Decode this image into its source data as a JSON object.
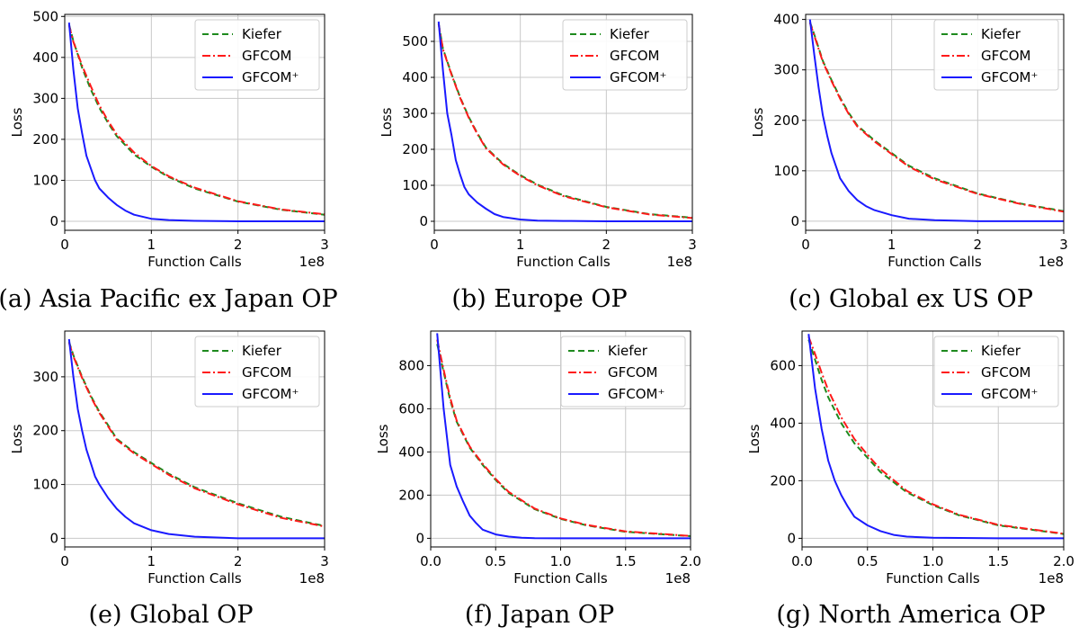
{
  "figure": {
    "colors": {
      "Kiefer": "#1e8a1e",
      "GFCOM": "#ff1a1a",
      "GFCOM+": "#1a1aff",
      "grid": "#c8c8c8"
    },
    "legend_placement": "top-right"
  },
  "chart_data": [
    {
      "type": "line",
      "caption": "(a) Asia Pacific ex Japan OP",
      "xlabel": "Function Calls",
      "ylabel": "Loss",
      "x_offset_label": "1e8",
      "xlim": [
        0,
        3
      ],
      "ylim": [
        -22,
        505
      ],
      "xticks": [
        0,
        1,
        2,
        3
      ],
      "xtick_labels": [
        "0",
        "1",
        "2",
        "3"
      ],
      "yticks": [
        0,
        100,
        200,
        300,
        400,
        500
      ],
      "ytick_labels": [
        "0",
        "100",
        "200",
        "300",
        "400",
        "500"
      ],
      "grid": true,
      "legend_placement": "top-right",
      "series": [
        {
          "name": "Kiefer",
          "style": "dashed",
          "x": [
            0.05,
            0.1,
            0.2,
            0.3,
            0.4,
            0.5,
            0.6,
            0.8,
            1.0,
            1.2,
            1.5,
            2.0,
            2.5,
            3.0
          ],
          "y": [
            480,
            440,
            375,
            322,
            277,
            240,
            208,
            163,
            133,
            108,
            80,
            48,
            28,
            16
          ]
        },
        {
          "name": "GFCOM",
          "style": "dashdot",
          "x": [
            0.05,
            0.1,
            0.2,
            0.3,
            0.4,
            0.5,
            0.6,
            0.8,
            1.0,
            1.2,
            1.5,
            2.0,
            2.5,
            3.0
          ],
          "y": [
            478,
            438,
            380,
            330,
            283,
            245,
            212,
            168,
            135,
            110,
            82,
            49,
            29,
            17
          ]
        },
        {
          "name": "GFCOM⁺",
          "style": "solid",
          "x": [
            0.05,
            0.1,
            0.15,
            0.2,
            0.25,
            0.3,
            0.35,
            0.4,
            0.5,
            0.6,
            0.7,
            0.8,
            1.0,
            1.2,
            1.5,
            2.0,
            3.0
          ],
          "y": [
            485,
            370,
            275,
            215,
            160,
            130,
            100,
            80,
            58,
            40,
            26,
            16,
            6,
            3,
            1,
            0,
            0
          ]
        }
      ]
    },
    {
      "type": "line",
      "caption": "(b) Europe OP",
      "xlabel": "Function Calls",
      "ylabel": "Loss",
      "x_offset_label": "1e8",
      "xlim": [
        0,
        3
      ],
      "ylim": [
        -25,
        575
      ],
      "xticks": [
        0,
        1,
        2,
        3
      ],
      "xtick_labels": [
        "0",
        "1",
        "2",
        "3"
      ],
      "yticks": [
        0,
        100,
        200,
        300,
        400,
        500
      ],
      "ytick_labels": [
        "0",
        "100",
        "200",
        "300",
        "400",
        "500"
      ],
      "grid": true,
      "legend_placement": "top-right",
      "series": [
        {
          "name": "Kiefer",
          "style": "dashed",
          "x": [
            0.05,
            0.1,
            0.2,
            0.3,
            0.4,
            0.5,
            0.6,
            0.8,
            1.0,
            1.2,
            1.5,
            2.0,
            2.5,
            3.0
          ],
          "y": [
            550,
            480,
            410,
            345,
            290,
            245,
            205,
            160,
            128,
            102,
            72,
            40,
            20,
            10
          ]
        },
        {
          "name": "GFCOM",
          "style": "dashdot",
          "x": [
            0.05,
            0.1,
            0.2,
            0.3,
            0.4,
            0.5,
            0.6,
            0.8,
            1.0,
            1.2,
            1.5,
            2.0,
            2.5,
            3.0
          ],
          "y": [
            548,
            478,
            408,
            343,
            288,
            243,
            203,
            158,
            126,
            100,
            70,
            39,
            19,
            9
          ]
        },
        {
          "name": "GFCOM⁺",
          "style": "solid",
          "x": [
            0.05,
            0.1,
            0.15,
            0.2,
            0.25,
            0.3,
            0.35,
            0.4,
            0.5,
            0.6,
            0.7,
            0.8,
            1.0,
            1.2,
            1.5,
            2.0,
            3.0
          ],
          "y": [
            555,
            420,
            300,
            240,
            170,
            130,
            95,
            75,
            52,
            35,
            20,
            12,
            5,
            2,
            1,
            0,
            0
          ]
        }
      ]
    },
    {
      "type": "line",
      "caption": "(c) Global ex US OP",
      "xlabel": "Function Calls",
      "ylabel": "Loss",
      "x_offset_label": "1e8",
      "xlim": [
        0,
        3
      ],
      "ylim": [
        -18,
        410
      ],
      "xticks": [
        0,
        1,
        2,
        3
      ],
      "xtick_labels": [
        "0",
        "1",
        "2",
        "3"
      ],
      "yticks": [
        0,
        100,
        200,
        300,
        400
      ],
      "ytick_labels": [
        "0",
        "100",
        "200",
        "300",
        "400"
      ],
      "grid": true,
      "legend_placement": "top-right",
      "series": [
        {
          "name": "Kiefer",
          "style": "dashed",
          "x": [
            0.05,
            0.1,
            0.2,
            0.3,
            0.4,
            0.5,
            0.6,
            0.8,
            1.0,
            1.2,
            1.5,
            2.0,
            2.5,
            3.0
          ],
          "y": [
            395,
            370,
            318,
            280,
            245,
            215,
            190,
            160,
            135,
            110,
            85,
            55,
            35,
            20
          ]
        },
        {
          "name": "GFCOM",
          "style": "dashdot",
          "x": [
            0.05,
            0.1,
            0.2,
            0.3,
            0.4,
            0.5,
            0.6,
            0.8,
            1.0,
            1.2,
            1.5,
            2.0,
            2.5,
            3.0
          ],
          "y": [
            393,
            368,
            316,
            278,
            243,
            213,
            188,
            158,
            133,
            108,
            83,
            54,
            34,
            19
          ]
        },
        {
          "name": "GFCOM⁺",
          "style": "solid",
          "x": [
            0.05,
            0.1,
            0.15,
            0.2,
            0.25,
            0.3,
            0.35,
            0.4,
            0.5,
            0.6,
            0.7,
            0.8,
            1.0,
            1.2,
            1.5,
            2.0,
            3.0
          ],
          "y": [
            400,
            330,
            265,
            210,
            170,
            135,
            110,
            85,
            60,
            42,
            30,
            22,
            12,
            5,
            2,
            0,
            0
          ]
        }
      ]
    },
    {
      "type": "line",
      "caption": "(e) Global OP",
      "xlabel": "Function Calls",
      "ylabel": "Loss",
      "x_offset_label": "1e8",
      "xlim": [
        0,
        3
      ],
      "ylim": [
        -16,
        385
      ],
      "xticks": [
        0,
        1,
        2,
        3
      ],
      "xtick_labels": [
        "0",
        "1",
        "2",
        "3"
      ],
      "yticks": [
        0,
        100,
        200,
        300
      ],
      "ytick_labels": [
        "0",
        "100",
        "200",
        "300"
      ],
      "grid": true,
      "legend_placement": "top-right",
      "series": [
        {
          "name": "Kiefer",
          "style": "dashed",
          "x": [
            0.05,
            0.1,
            0.2,
            0.3,
            0.4,
            0.5,
            0.6,
            0.8,
            1.0,
            1.2,
            1.5,
            2.0,
            2.5,
            3.0
          ],
          "y": [
            365,
            340,
            300,
            265,
            235,
            210,
            185,
            160,
            140,
            120,
            95,
            65,
            40,
            23
          ]
        },
        {
          "name": "GFCOM",
          "style": "dashdot",
          "x": [
            0.05,
            0.1,
            0.2,
            0.3,
            0.4,
            0.5,
            0.6,
            0.8,
            1.0,
            1.2,
            1.5,
            2.0,
            2.5,
            3.0
          ],
          "y": [
            363,
            338,
            298,
            263,
            233,
            208,
            183,
            158,
            138,
            118,
            93,
            63,
            38,
            22
          ]
        },
        {
          "name": "GFCOM⁺",
          "style": "solid",
          "x": [
            0.05,
            0.1,
            0.15,
            0.2,
            0.25,
            0.3,
            0.35,
            0.4,
            0.5,
            0.6,
            0.7,
            0.8,
            1.0,
            1.2,
            1.5,
            2.0,
            3.0
          ],
          "y": [
            370,
            300,
            240,
            200,
            165,
            140,
            115,
            100,
            75,
            55,
            40,
            28,
            15,
            8,
            3,
            0,
            0
          ]
        }
      ]
    },
    {
      "type": "line",
      "caption": "(f) Japan OP",
      "xlabel": "Function Calls",
      "ylabel": "Loss",
      "x_offset_label": "1e8",
      "xlim": [
        0,
        2
      ],
      "ylim": [
        -40,
        960
      ],
      "xticks": [
        0,
        0.5,
        1.0,
        1.5,
        2.0
      ],
      "xtick_labels": [
        "0.0",
        "0.5",
        "1.0",
        "1.5",
        "2.0"
      ],
      "yticks": [
        0,
        200,
        400,
        600,
        800
      ],
      "ytick_labels": [
        "0",
        "200",
        "400",
        "600",
        "800"
      ],
      "grid": true,
      "legend_placement": "top-right",
      "series": [
        {
          "name": "Kiefer",
          "style": "dashed",
          "x": [
            0.05,
            0.1,
            0.15,
            0.2,
            0.3,
            0.4,
            0.5,
            0.6,
            0.8,
            1.0,
            1.2,
            1.5,
            2.0
          ],
          "y": [
            900,
            770,
            640,
            540,
            420,
            340,
            270,
            210,
            135,
            90,
            60,
            30,
            10
          ]
        },
        {
          "name": "GFCOM",
          "style": "dashdot",
          "x": [
            0.05,
            0.1,
            0.15,
            0.2,
            0.3,
            0.4,
            0.5,
            0.6,
            0.8,
            1.0,
            1.2,
            1.5,
            2.0
          ],
          "y": [
            920,
            780,
            650,
            545,
            425,
            345,
            275,
            215,
            138,
            92,
            62,
            32,
            11
          ]
        },
        {
          "name": "GFCOM⁺",
          "style": "solid",
          "x": [
            0.05,
            0.1,
            0.15,
            0.2,
            0.25,
            0.3,
            0.35,
            0.4,
            0.5,
            0.6,
            0.7,
            0.8,
            1.0,
            1.5,
            2.0
          ],
          "y": [
            950,
            600,
            340,
            240,
            170,
            105,
            70,
            40,
            18,
            8,
            3,
            1,
            0,
            0,
            0
          ]
        }
      ]
    },
    {
      "type": "line",
      "caption": "(g) North America OP",
      "xlabel": "Function Calls",
      "ylabel": "Loss",
      "x_offset_label": "1e8",
      "xlim": [
        0,
        2
      ],
      "ylim": [
        -30,
        720
      ],
      "xticks": [
        0,
        0.5,
        1.0,
        1.5,
        2.0
      ],
      "xtick_labels": [
        "0.0",
        "0.5",
        "1.0",
        "1.5",
        "2.0"
      ],
      "yticks": [
        0,
        200,
        400,
        600
      ],
      "ytick_labels": [
        "0",
        "200",
        "400",
        "600"
      ],
      "grid": true,
      "legend_placement": "top-right",
      "series": [
        {
          "name": "Kiefer",
          "style": "dashed",
          "x": [
            0.05,
            0.1,
            0.15,
            0.2,
            0.3,
            0.4,
            0.5,
            0.6,
            0.8,
            1.0,
            1.2,
            1.5,
            2.0
          ],
          "y": [
            690,
            620,
            550,
            490,
            400,
            330,
            280,
            230,
            160,
            115,
            80,
            45,
            15
          ]
        },
        {
          "name": "GFCOM",
          "style": "dashdot",
          "x": [
            0.05,
            0.1,
            0.15,
            0.2,
            0.3,
            0.4,
            0.5,
            0.6,
            0.8,
            1.0,
            1.2,
            1.5,
            2.0
          ],
          "y": [
            700,
            640,
            575,
            515,
            420,
            345,
            290,
            240,
            165,
            118,
            82,
            47,
            16
          ]
        },
        {
          "name": "GFCOM⁺",
          "style": "solid",
          "x": [
            0.05,
            0.1,
            0.15,
            0.2,
            0.25,
            0.3,
            0.35,
            0.4,
            0.5,
            0.6,
            0.7,
            0.8,
            1.0,
            1.5,
            2.0
          ],
          "y": [
            710,
            520,
            380,
            270,
            200,
            150,
            110,
            75,
            45,
            25,
            12,
            6,
            2,
            0,
            0
          ]
        }
      ]
    }
  ]
}
